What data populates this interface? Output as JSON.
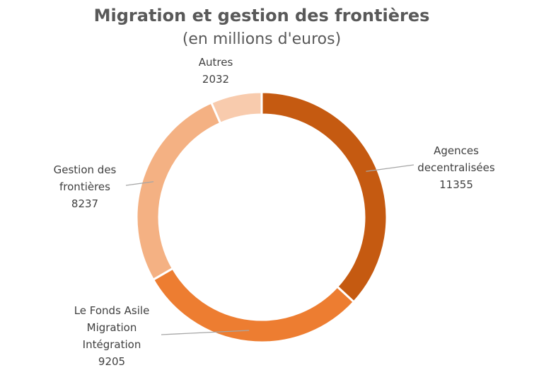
{
  "chart_data": {
    "type": "pie",
    "variant": "donut",
    "title": "Migration et gestion des frontières",
    "subtitle": "(en millions d'euros)",
    "unit": "millions d'euros",
    "start": "top",
    "direction": "clockwise",
    "slices": [
      {
        "label_lines": [
          "Agences",
          "decentralisées"
        ],
        "value": 11355,
        "value_text": "11355",
        "color": "#c55a11"
      },
      {
        "label_lines": [
          "Le Fonds Asile",
          "Migration",
          "Intégration"
        ],
        "value": 9205,
        "value_text": "9205",
        "color": "#ed7d31"
      },
      {
        "label_lines": [
          "Gestion des",
          "frontières"
        ],
        "value": 8237,
        "value_text": "8237",
        "color": "#f4b183"
      },
      {
        "label_lines": [
          "Autres"
        ],
        "value": 2032,
        "value_text": "2032",
        "color": "#f8cbad"
      }
    ],
    "legend": "none"
  }
}
